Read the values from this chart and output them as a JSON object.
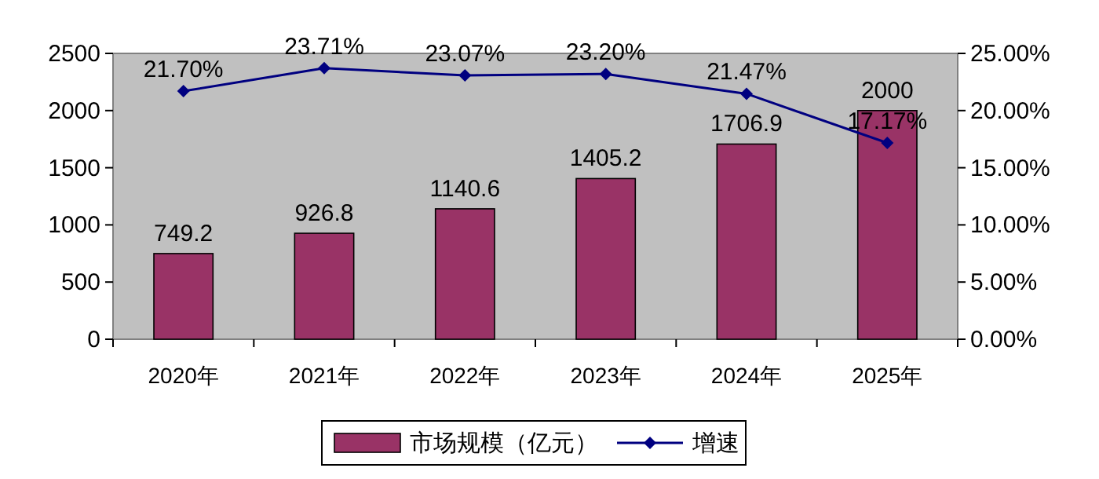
{
  "chart_data": {
    "type": "bar",
    "categories": [
      "2020年",
      "2021年",
      "2022年",
      "2023年",
      "2024年",
      "2025年"
    ],
    "series": [
      {
        "name": "市场规模（亿元）",
        "color": "#993366",
        "values": [
          749.2,
          926.8,
          1140.6,
          1405.2,
          1706.9,
          2000
        ],
        "value_labels": [
          "749.2",
          "926.8",
          "1140.6",
          "1405.2",
          "1706.9",
          "2000"
        ]
      },
      {
        "name": "增速",
        "type": "line",
        "axis": "y2",
        "color": "#000080",
        "marker": "diamond",
        "values": [
          21.7,
          23.71,
          23.07,
          23.2,
          21.47,
          17.17
        ],
        "value_labels": [
          "21.70%",
          "23.71%",
          "23.07%",
          "23.20%",
          "21.47%",
          "17.17%"
        ]
      }
    ],
    "ylim": [
      0,
      2500
    ],
    "yticks": [
      0,
      500,
      1000,
      1500,
      2000,
      2500
    ],
    "y2lim": [
      0,
      25
    ],
    "y2ticks": [
      {
        "value": 0,
        "label": "0.00%"
      },
      {
        "value": 5,
        "label": "5.00%"
      },
      {
        "value": 10,
        "label": "10.00%"
      },
      {
        "value": 15,
        "label": "15.00%"
      },
      {
        "value": 20,
        "label": "20.00%"
      },
      {
        "value": 25,
        "label": "25.00%"
      }
    ],
    "grid": false,
    "legend": "bottom"
  }
}
